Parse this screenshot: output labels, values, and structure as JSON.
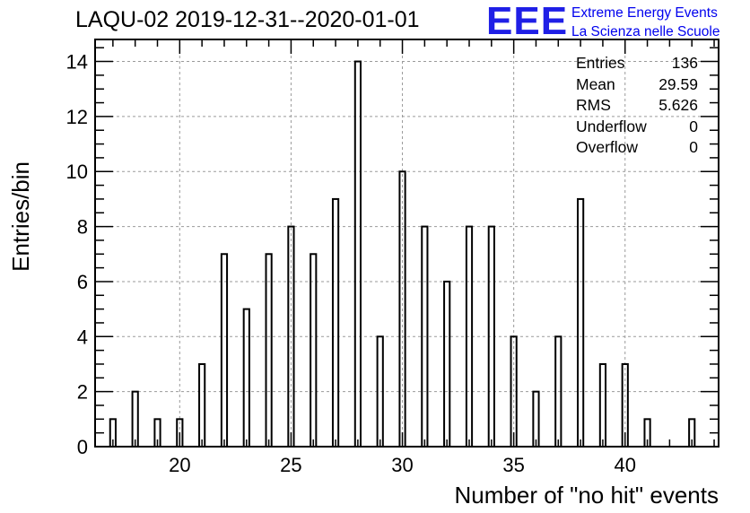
{
  "title": "LAQU-02 2019-12-31--2020-01-01",
  "logo": {
    "mark": "EEE",
    "line1": "Extreme Energy Events",
    "line2": "La Scienza nelle Scuole"
  },
  "stats": [
    {
      "label": "Entries",
      "value": "136"
    },
    {
      "label": "Mean",
      "value": "29.59"
    },
    {
      "label": "RMS",
      "value": "5.626"
    },
    {
      "label": "Underflow",
      "value": "0"
    },
    {
      "label": "Overflow",
      "value": "0"
    }
  ],
  "chart_data": {
    "type": "bar",
    "title": "LAQU-02 2019-12-31--2020-01-01",
    "xlabel": "Number of \"no hit\" events",
    "ylabel": "Entries/bin",
    "xlim": [
      16.2,
      44.2
    ],
    "ylim": [
      0,
      14.8
    ],
    "xticks": [
      20,
      25,
      30,
      35,
      40
    ],
    "yticks": [
      0,
      2,
      4,
      6,
      8,
      10,
      12,
      14
    ],
    "bin_width": 0.25,
    "grid": true,
    "bins": [
      {
        "x": 17,
        "count": 1
      },
      {
        "x": 18,
        "count": 2
      },
      {
        "x": 19,
        "count": 1
      },
      {
        "x": 20,
        "count": 1
      },
      {
        "x": 21,
        "count": 3
      },
      {
        "x": 22,
        "count": 7
      },
      {
        "x": 23,
        "count": 5
      },
      {
        "x": 24,
        "count": 7
      },
      {
        "x": 25,
        "count": 8
      },
      {
        "x": 26,
        "count": 7
      },
      {
        "x": 27,
        "count": 9
      },
      {
        "x": 28,
        "count": 14
      },
      {
        "x": 29,
        "count": 4
      },
      {
        "x": 30,
        "count": 10
      },
      {
        "x": 31,
        "count": 8
      },
      {
        "x": 32,
        "count": 6
      },
      {
        "x": 33,
        "count": 8
      },
      {
        "x": 34,
        "count": 8
      },
      {
        "x": 35,
        "count": 4
      },
      {
        "x": 36,
        "count": 2
      },
      {
        "x": 37,
        "count": 4
      },
      {
        "x": 38,
        "count": 9
      },
      {
        "x": 39,
        "count": 3
      },
      {
        "x": 40,
        "count": 3
      },
      {
        "x": 41,
        "count": 1
      },
      {
        "x": 43,
        "count": 1
      }
    ]
  }
}
